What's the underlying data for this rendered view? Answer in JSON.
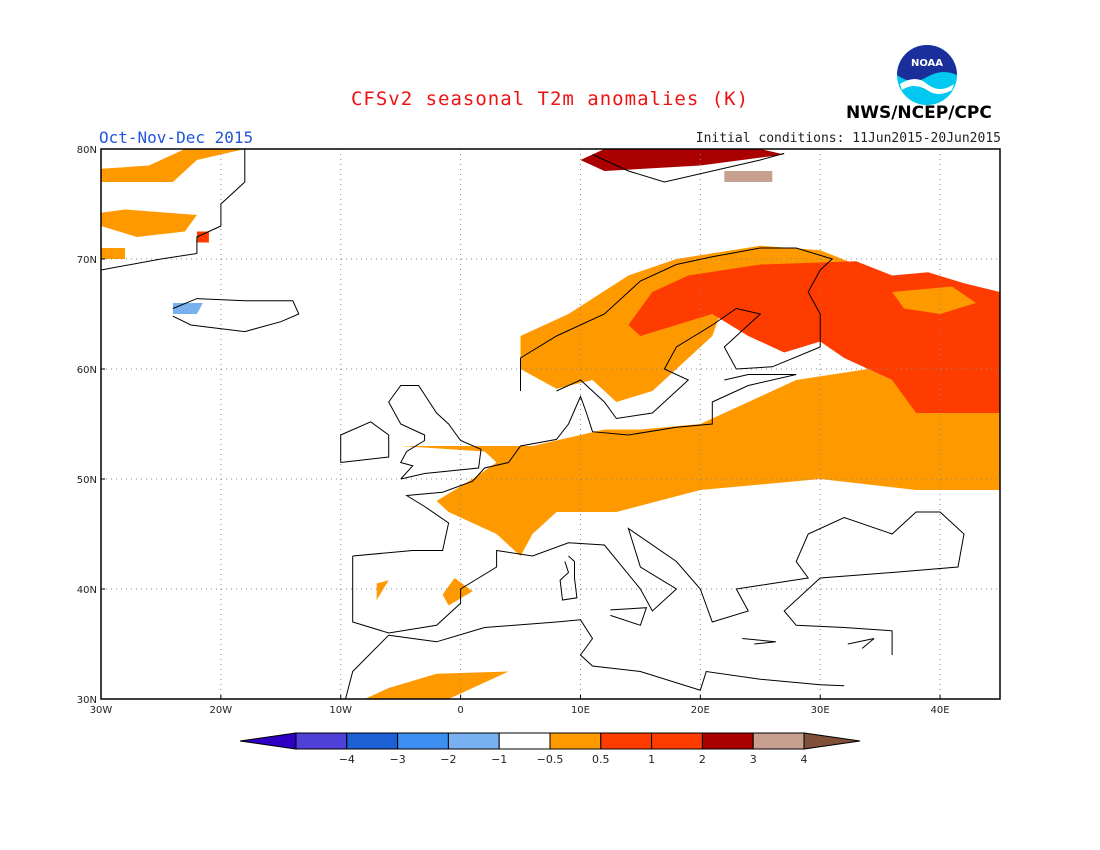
{
  "header": {
    "title": "CFSv2 seasonal T2m anomalies (K)",
    "season": "Oct-Nov-Dec 2015",
    "initial_conditions": "Initial conditions: 11Jun2015-20Jun2015",
    "agency": "NWS/NCEP/CPC",
    "logo_text": "NOAA"
  },
  "map": {
    "region": "Europe",
    "lon_range": [
      -30,
      45
    ],
    "lat_range": [
      30,
      80
    ],
    "lon_ticks": [
      {
        "value": -30,
        "label": "30W"
      },
      {
        "value": -20,
        "label": "20W"
      },
      {
        "value": -10,
        "label": "10W"
      },
      {
        "value": 0,
        "label": "0"
      },
      {
        "value": 10,
        "label": "10E"
      },
      {
        "value": 20,
        "label": "20E"
      },
      {
        "value": 30,
        "label": "30E"
      },
      {
        "value": 40,
        "label": "40E"
      }
    ],
    "lat_ticks": [
      {
        "value": 80,
        "label": "80N"
      },
      {
        "value": 70,
        "label": "70N"
      },
      {
        "value": 60,
        "label": "60N"
      },
      {
        "value": 50,
        "label": "50N"
      },
      {
        "value": 40,
        "label": "40N"
      },
      {
        "value": 30,
        "label": "30N"
      }
    ],
    "grid": "dotted"
  },
  "anomaly_regions": [
    {
      "level": "0.5-1",
      "color": "#ff9900",
      "points": [
        [
          -5,
          53
        ],
        [
          6,
          53
        ],
        [
          12,
          54.5
        ],
        [
          15,
          54.5
        ],
        [
          20,
          55
        ],
        [
          24,
          57
        ],
        [
          28,
          59
        ],
        [
          34,
          60
        ],
        [
          38,
          58
        ],
        [
          45,
          57
        ],
        [
          45,
          49
        ],
        [
          38,
          49
        ],
        [
          30,
          50
        ],
        [
          20,
          49
        ],
        [
          13,
          47
        ],
        [
          8,
          47
        ],
        [
          6,
          45
        ],
        [
          5,
          43
        ],
        [
          3,
          45
        ],
        [
          -1,
          47
        ],
        [
          -2,
          48
        ],
        [
          1,
          50
        ],
        [
          3,
          51.5
        ],
        [
          2,
          52.5
        ]
      ]
    },
    {
      "level": "0.5-1",
      "color": "#ff9900",
      "points": [
        [
          5,
          60
        ],
        [
          5,
          63
        ],
        [
          9,
          65
        ],
        [
          14,
          68.5
        ],
        [
          18,
          70
        ],
        [
          25,
          71.2
        ],
        [
          30,
          70.8
        ],
        [
          33,
          69.5
        ],
        [
          25,
          69
        ],
        [
          22,
          66
        ],
        [
          21,
          63
        ],
        [
          18,
          60
        ],
        [
          16,
          58
        ],
        [
          13,
          57
        ],
        [
          11,
          59
        ],
        [
          8,
          58.2
        ]
      ]
    },
    {
      "level": "1-2",
      "color": "#ff3c00",
      "points": [
        [
          14,
          64
        ],
        [
          16,
          67
        ],
        [
          19,
          68.5
        ],
        [
          25,
          69.5
        ],
        [
          33,
          69.8
        ],
        [
          36,
          68.5
        ],
        [
          39,
          68.8
        ],
        [
          42,
          67.8
        ],
        [
          45,
          67
        ],
        [
          45,
          56
        ],
        [
          38,
          56
        ],
        [
          36,
          59
        ],
        [
          32,
          61
        ],
        [
          30,
          62.5
        ],
        [
          27,
          61.5
        ],
        [
          24,
          63
        ],
        [
          21,
          65
        ],
        [
          18,
          64
        ],
        [
          15,
          63
        ]
      ]
    },
    {
      "level": "0.5-1",
      "color": "#ff9900",
      "points": [
        [
          36,
          67
        ],
        [
          41,
          67.5
        ],
        [
          43,
          66
        ],
        [
          40,
          65
        ],
        [
          37,
          65.5
        ]
      ]
    },
    {
      "level": "0.5-1",
      "color": "#ff9900",
      "points": [
        [
          -31,
          77
        ],
        [
          -24,
          77
        ],
        [
          -22,
          79
        ],
        [
          -18,
          80
        ],
        [
          -23,
          80
        ],
        [
          -26,
          78.5
        ],
        [
          -31,
          78.2
        ]
      ]
    },
    {
      "level": "0.5-1",
      "color": "#ff9900",
      "points": [
        [
          -32,
          73
        ],
        [
          -27,
          72
        ],
        [
          -23,
          72.5
        ],
        [
          -22,
          74
        ],
        [
          -28,
          74.5
        ],
        [
          -32,
          74.2
        ]
      ]
    },
    {
      "level": "0.5-1",
      "color": "#ff9900",
      "points": [
        [
          -33,
          70
        ],
        [
          -28,
          70
        ],
        [
          -28,
          71
        ],
        [
          -33,
          71
        ]
      ]
    },
    {
      "level": "1-2",
      "color": "#ff3c00",
      "points": [
        [
          -22,
          71.5
        ],
        [
          -21,
          71.5
        ],
        [
          -21,
          72.5
        ],
        [
          -22,
          72.5
        ]
      ]
    },
    {
      "level": "0.5-1",
      "color": "#ff9900",
      "points": [
        [
          -8,
          30
        ],
        [
          -1,
          30
        ],
        [
          2,
          31.5
        ],
        [
          4,
          32.5
        ],
        [
          -2,
          32.3
        ],
        [
          -6,
          31
        ]
      ]
    },
    {
      "level": "0.5-1",
      "color": "#ff9900",
      "points": [
        [
          -1,
          38.5
        ],
        [
          1,
          39.8
        ],
        [
          -0.5,
          41
        ],
        [
          -1.5,
          39.5
        ]
      ]
    },
    {
      "level": "0.5-1",
      "color": "#ff9900",
      "points": [
        [
          -7,
          39
        ],
        [
          -6,
          40.8
        ],
        [
          -7,
          40.5
        ]
      ]
    },
    {
      "level": "2-3",
      "color": "#aa0000",
      "points": [
        [
          12,
          78
        ],
        [
          20,
          78.5
        ],
        [
          27,
          79.5
        ],
        [
          25,
          80
        ],
        [
          12,
          80
        ],
        [
          10,
          79
        ]
      ]
    },
    {
      "level": "3-4",
      "color": "#c8a090",
      "points": [
        [
          22,
          77
        ],
        [
          26,
          77
        ],
        [
          26,
          78
        ],
        [
          22,
          78
        ]
      ]
    },
    {
      "level": "-1--0.5",
      "color": "#78b0f0",
      "points": [
        [
          -24,
          65
        ],
        [
          -22,
          65
        ],
        [
          -21.5,
          66
        ],
        [
          -24,
          66
        ]
      ]
    }
  ],
  "coastlines": [
    {
      "name": "Norway-Sweden-Finland",
      "points": [
        [
          5,
          58
        ],
        [
          5,
          61
        ],
        [
          8,
          63
        ],
        [
          12,
          65
        ],
        [
          15,
          68
        ],
        [
          18,
          69.5
        ],
        [
          21,
          70.2
        ],
        [
          25,
          71
        ],
        [
          28,
          71
        ],
        [
          31,
          70
        ],
        [
          30,
          69
        ],
        [
          29,
          67
        ],
        [
          30,
          65
        ],
        [
          30,
          62
        ],
        [
          26,
          60.2
        ],
        [
          23,
          60
        ],
        [
          22,
          62
        ],
        [
          25,
          65
        ],
        [
          23,
          65.5
        ],
        [
          21,
          64
        ],
        [
          18,
          62
        ],
        [
          17,
          60
        ],
        [
          19,
          59
        ],
        [
          16,
          56
        ],
        [
          13,
          55.5
        ],
        [
          12,
          57
        ],
        [
          10,
          59
        ],
        [
          8,
          58
        ]
      ]
    },
    {
      "name": "Europe-main",
      "points": [
        [
          -9,
          43
        ],
        [
          -9,
          39
        ],
        [
          -9,
          37
        ],
        [
          -6,
          36
        ],
        [
          -2,
          36.7
        ],
        [
          0,
          38.7
        ],
        [
          0,
          40
        ],
        [
          3,
          42
        ],
        [
          3,
          43.5
        ],
        [
          6,
          43
        ],
        [
          9,
          44.2
        ],
        [
          12,
          44
        ],
        [
          15,
          40
        ],
        [
          16,
          38
        ],
        [
          18,
          40
        ],
        [
          15,
          42
        ],
        [
          14,
          45.5
        ],
        [
          18,
          42.5
        ],
        [
          20,
          40
        ],
        [
          21,
          37
        ],
        [
          24,
          38
        ],
        [
          23,
          40
        ],
        [
          26,
          40.5
        ],
        [
          29,
          41
        ],
        [
          28,
          42.5
        ],
        [
          29,
          45
        ],
        [
          32,
          46.5
        ],
        [
          36,
          45
        ],
        [
          38,
          47
        ],
        [
          40,
          47
        ],
        [
          42,
          45
        ],
        [
          41.5,
          42
        ],
        [
          36,
          41.5
        ],
        [
          30,
          41
        ],
        [
          27,
          38
        ],
        [
          28,
          36.7
        ],
        [
          32,
          36.5
        ],
        [
          36,
          36.2
        ],
        [
          36,
          34
        ]
      ]
    },
    {
      "name": "Europe-north-coast",
      "points": [
        [
          -9,
          43
        ],
        [
          -4,
          43.5
        ],
        [
          -1.5,
          43.5
        ],
        [
          -1,
          46
        ],
        [
          -3,
          47.5
        ],
        [
          -4.5,
          48.5
        ],
        [
          -1.5,
          48.8
        ],
        [
          1,
          49.8
        ],
        [
          2,
          51
        ],
        [
          4,
          51.5
        ],
        [
          5,
          53
        ],
        [
          8,
          53.6
        ],
        [
          9,
          55
        ],
        [
          10,
          57.5
        ],
        [
          10.5,
          56
        ],
        [
          11,
          54.3
        ],
        [
          14,
          54
        ],
        [
          18,
          54.7
        ],
        [
          21,
          55
        ],
        [
          21,
          57
        ],
        [
          24,
          58.5
        ],
        [
          28,
          59.5
        ],
        [
          24,
          59.5
        ],
        [
          22,
          59
        ]
      ]
    },
    {
      "name": "Great-Britain",
      "points": [
        [
          -5,
          50
        ],
        [
          -3,
          50.5
        ],
        [
          1.5,
          51
        ],
        [
          1.7,
          52.7
        ],
        [
          0,
          53.5
        ],
        [
          -1,
          55
        ],
        [
          -2,
          56
        ],
        [
          -3.5,
          58.5
        ],
        [
          -5,
          58.5
        ],
        [
          -6,
          57
        ],
        [
          -5,
          55
        ],
        [
          -3,
          54
        ],
        [
          -3,
          53.5
        ],
        [
          -4.5,
          52.5
        ],
        [
          -5,
          51.5
        ],
        [
          -4,
          51.2
        ],
        [
          -5,
          50
        ]
      ]
    },
    {
      "name": "Ireland",
      "points": [
        [
          -10,
          51.5
        ],
        [
          -6,
          52
        ],
        [
          -6,
          54
        ],
        [
          -7.5,
          55.2
        ],
        [
          -10,
          54
        ],
        [
          -10,
          51.5
        ]
      ]
    },
    {
      "name": "Iceland",
      "points": [
        [
          -24,
          65.5
        ],
        [
          -22,
          66.4
        ],
        [
          -18,
          66.2
        ],
        [
          -14,
          66.2
        ],
        [
          -13.5,
          65
        ],
        [
          -15,
          64.3
        ],
        [
          -18,
          63.4
        ],
        [
          -21,
          63.8
        ],
        [
          -22.5,
          64
        ],
        [
          -24,
          64.8
        ]
      ]
    },
    {
      "name": "North-Africa",
      "points": [
        [
          -6,
          35.8
        ],
        [
          -2,
          35.2
        ],
        [
          2,
          36.5
        ],
        [
          8,
          37
        ],
        [
          10,
          37.2
        ],
        [
          11,
          35.5
        ],
        [
          10,
          34
        ],
        [
          11,
          33
        ],
        [
          15,
          32.5
        ],
        [
          20,
          30.8
        ],
        [
          20.5,
          32.5
        ],
        [
          25,
          31.8
        ],
        [
          30,
          31.3
        ],
        [
          32,
          31.2
        ]
      ]
    },
    {
      "name": "Morocco-Atlantic",
      "points": [
        [
          -6,
          35.8
        ],
        [
          -9,
          32.5
        ],
        [
          -9.6,
          30
        ]
      ]
    },
    {
      "name": "Corsica-Sardinia",
      "points": [
        [
          9,
          43
        ],
        [
          9.5,
          42.5
        ],
        [
          9.5,
          41
        ],
        [
          9.7,
          39.2
        ],
        [
          8.5,
          39
        ],
        [
          8.3,
          40.8
        ],
        [
          9,
          41.5
        ],
        [
          8.7,
          42.5
        ]
      ]
    },
    {
      "name": "Sicily",
      "points": [
        [
          12.5,
          38.1
        ],
        [
          15.5,
          38.3
        ],
        [
          15,
          36.7
        ],
        [
          12.5,
          37.6
        ]
      ]
    },
    {
      "name": "Crete",
      "points": [
        [
          23.5,
          35.5
        ],
        [
          26.3,
          35.2
        ],
        [
          24.5,
          35
        ]
      ]
    },
    {
      "name": "Cyprus",
      "points": [
        [
          32.3,
          35
        ],
        [
          34.5,
          35.5
        ],
        [
          33.5,
          34.6
        ]
      ]
    },
    {
      "name": "Greenland",
      "points": [
        [
          -30,
          69
        ],
        [
          -25,
          70
        ],
        [
          -22,
          70.5
        ],
        [
          -22,
          72
        ],
        [
          -20,
          73
        ],
        [
          -20,
          75
        ],
        [
          -18,
          77
        ],
        [
          -18,
          80
        ]
      ]
    },
    {
      "name": "Svalbard",
      "points": [
        [
          11,
          79.5
        ],
        [
          14,
          78
        ],
        [
          17,
          77
        ],
        [
          21,
          78
        ],
        [
          25,
          79
        ],
        [
          27,
          79.6
        ]
      ]
    }
  ],
  "colorbar": {
    "colors": [
      "#2e00c4",
      "#4f40d8",
      "#1c60d6",
      "#3c8ef0",
      "#78b0f0",
      "#ffffff",
      "#ff9900",
      "#ff3c00",
      "#ff3c00",
      "#aa0000",
      "#c8a090",
      "#80503a"
    ],
    "labels": [
      "-4",
      "-3",
      "-2",
      "-1",
      "-0.5",
      "0.5",
      "1",
      "2",
      "3",
      "4"
    ]
  }
}
